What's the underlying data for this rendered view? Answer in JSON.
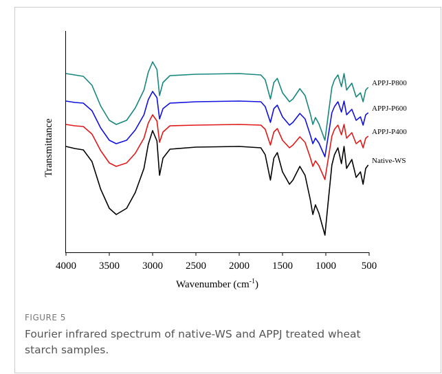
{
  "chart_data": {
    "type": "line",
    "y_label": "Transmittance",
    "x_label": {
      "text": "Wavenumber (cm",
      "superscript": "-1",
      "suffix": ")"
    },
    "xlim": [
      4000,
      500
    ],
    "xticks": [
      4000,
      3500,
      3000,
      2500,
      2000,
      1500,
      1000,
      500
    ],
    "ylim": [
      0,
      322
    ],
    "x": [
      4000,
      3900,
      3800,
      3700,
      3600,
      3500,
      3420,
      3300,
      3200,
      3100,
      3050,
      3000,
      2950,
      2920,
      2880,
      2800,
      2500,
      2000,
      1750,
      1700,
      1640,
      1600,
      1560,
      1500,
      1420,
      1380,
      1300,
      1240,
      1180,
      1150,
      1120,
      1080,
      1010,
      970,
      930,
      900,
      860,
      820,
      790,
      760,
      700,
      650,
      600,
      570,
      540,
      510
    ],
    "series": [
      {
        "name": "APPJ-P800",
        "color": "#16877e",
        "values": [
          260,
          258,
          256,
          243,
          213,
          192,
          186,
          192,
          210,
          236,
          262,
          277,
          266,
          228,
          247,
          257,
          259,
          260,
          258,
          251,
          223,
          247,
          253,
          232,
          219,
          223,
          238,
          228,
          202,
          186,
          196,
          187,
          163,
          202,
          240,
          251,
          258,
          241,
          260,
          236,
          246,
          226,
          232,
          219,
          236,
          240
        ]
      },
      {
        "name": "APPJ-P600",
        "color": "#1010e0",
        "values": [
          220,
          218,
          217,
          206,
          181,
          163,
          158,
          163,
          178,
          200,
          222,
          234,
          225,
          194,
          209,
          217,
          219,
          220,
          219,
          212,
          189,
          209,
          214,
          197,
          185,
          189,
          202,
          194,
          171,
          158,
          166,
          159,
          139,
          171,
          203,
          212,
          219,
          204,
          220,
          200,
          208,
          192,
          197,
          185,
          200,
          203
        ]
      },
      {
        "name": "APPJ-P400",
        "color": "#e01818",
        "values": [
          186,
          184,
          183,
          172,
          148,
          130,
          125,
          130,
          144,
          166,
          188,
          200,
          191,
          160,
          175,
          184,
          185,
          186,
          185,
          179,
          156,
          175,
          180,
          163,
          152,
          156,
          168,
          160,
          138,
          125,
          133,
          126,
          106,
          138,
          169,
          179,
          185,
          171,
          186,
          166,
          174,
          158,
          163,
          152,
          166,
          169
        ]
      },
      {
        "name": "Native-WS",
        "color": "#000000",
        "values": [
          154,
          151,
          149,
          132,
          92,
          64,
          55,
          64,
          87,
          122,
          157,
          177,
          162,
          112,
          137,
          150,
          153,
          154,
          152,
          142,
          105,
          137,
          145,
          117,
          99,
          105,
          125,
          112,
          77,
          55,
          69,
          57,
          25,
          77,
          127,
          142,
          152,
          129,
          154,
          122,
          135,
          109,
          117,
          99,
          122,
          127
        ]
      }
    ]
  },
  "caption": {
    "figure": "FIGURE 5",
    "lines": [
      "Fourier infrared spectrum of native-WS and APPJ treated wheat",
      "starch samples."
    ]
  }
}
